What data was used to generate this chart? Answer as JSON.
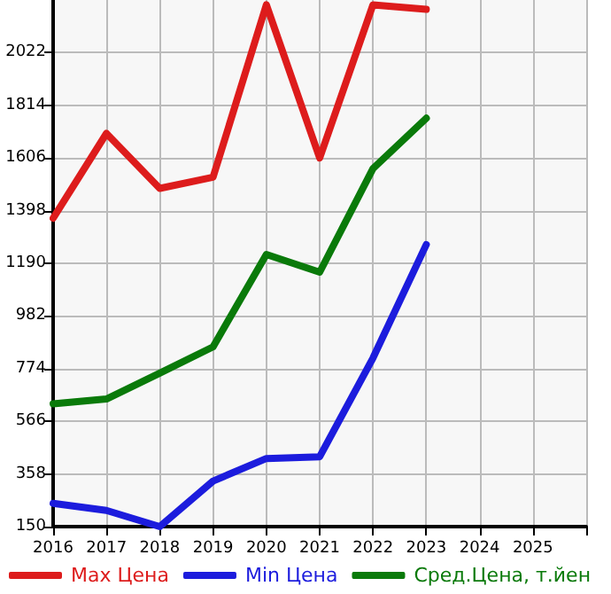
{
  "chart_data": {
    "type": "line",
    "x": [
      2016,
      2017,
      2018,
      2019,
      2020,
      2021,
      2022,
      2023
    ],
    "series": [
      {
        "name": "Max Цена",
        "color": "#dd1c1c",
        "values": [
          1368,
          1703,
          1486,
          1530,
          2211,
          1606,
          2211,
          2193
        ]
      },
      {
        "name": "Min Цена",
        "color": "#1c1cdd",
        "values": [
          242,
          214,
          150,
          330,
          419,
          426,
          816,
          1264
        ]
      },
      {
        "name": "Сред.Цена, т.йен",
        "color": "#0a7a0a",
        "values": [
          635,
          654,
          756,
          860,
          1225,
          1155,
          1564,
          1763
        ]
      }
    ],
    "xlim": [
      2016,
      2026
    ],
    "xticks": [
      2016,
      2017,
      2018,
      2019,
      2020,
      2021,
      2022,
      2023,
      2024,
      2025
    ],
    "ylim": [
      150,
      2230
    ],
    "yticks": [
      150,
      358,
      566,
      774,
      982,
      1190,
      1398,
      1606,
      1814,
      2022
    ],
    "grid": true,
    "legend": "bottom",
    "marker": "none",
    "line_style": "solid"
  }
}
